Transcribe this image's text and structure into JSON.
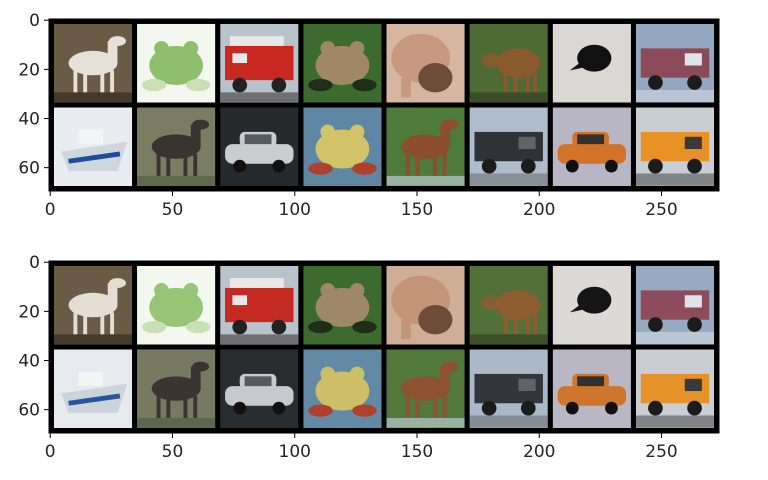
{
  "chart_data": [
    {
      "type": "image-grid",
      "x_ticks": [
        0,
        50,
        100,
        150,
        200,
        250
      ],
      "y_ticks": [
        0,
        20,
        40,
        60
      ],
      "xlim": [
        -0.5,
        273.5
      ],
      "ylim": [
        69.5,
        -0.5
      ],
      "grid": false,
      "grid_rows": 2,
      "grid_cols": 8,
      "tile_size": 32,
      "tile_padding": 2,
      "tiles": [
        {
          "subject": "horse",
          "bg": "#6b5a45",
          "fg": "#e6e0d6",
          "accent": "#2b2419"
        },
        {
          "subject": "frog",
          "bg": "#f4f7f0",
          "fg": "#8fbf6a",
          "accent": "#c9dfb6"
        },
        {
          "subject": "fire-truck",
          "bg": "#b9c3cc",
          "fg": "#c8281f",
          "accent": "#e8e8e8"
        },
        {
          "subject": "frog",
          "bg": "#3d6a2e",
          "fg": "#a08766",
          "accent": "#1f2e17"
        },
        {
          "subject": "dog",
          "bg": "#d6b6a0",
          "fg": "#c89880",
          "accent": "#6d4c3a"
        },
        {
          "subject": "deer",
          "bg": "#4f6b35",
          "fg": "#8a5a2c",
          "accent": "#2f3a1e"
        },
        {
          "subject": "cat",
          "bg": "#dad8d4",
          "fg": "#111111",
          "accent": "#b9b6b0"
        },
        {
          "subject": "truck",
          "bg": "#93a7c0",
          "fg": "#8a4a5a",
          "accent": "#dfe4ea"
        },
        {
          "subject": "ship",
          "bg": "#e9ecf0",
          "fg": "#cfd6dc",
          "accent": "#1e4d9a"
        },
        {
          "subject": "horse",
          "bg": "#7b7d62",
          "fg": "#3a3430",
          "accent": "#4d5a3a"
        },
        {
          "subject": "automobile",
          "bg": "#262a2c",
          "fg": "#c9cdd0",
          "accent": "#555b60"
        },
        {
          "subject": "frog",
          "bg": "#5f86a2",
          "fg": "#d1c36a",
          "accent": "#b0402e"
        },
        {
          "subject": "horse",
          "bg": "#4e7a3a",
          "fg": "#8b4f2e",
          "accent": "#c9d9e9"
        },
        {
          "subject": "truck",
          "bg": "#aebccb",
          "fg": "#2f3338",
          "accent": "#5f6468"
        },
        {
          "subject": "automobile",
          "bg": "#b8b6c4",
          "fg": "#d27428",
          "accent": "#30302f"
        },
        {
          "subject": "truck",
          "bg": "#c9ced4",
          "fg": "#e89125",
          "accent": "#3a3a3a"
        }
      ]
    },
    {
      "type": "image-grid",
      "x_ticks": [
        0,
        50,
        100,
        150,
        200,
        250
      ],
      "y_ticks": [
        0,
        20,
        40,
        60
      ],
      "xlim": [
        -0.5,
        273.5
      ],
      "ylim": [
        69.5,
        -0.5
      ],
      "grid": false,
      "grid_rows": 2,
      "grid_cols": 8,
      "tile_size": 32,
      "tile_padding": 2,
      "tiles": [
        {
          "subject": "horse",
          "bg": "#6b5a45",
          "fg": "#e3ddd2",
          "accent": "#2b2419"
        },
        {
          "subject": "frog",
          "bg": "#f4f7f0",
          "fg": "#98c476",
          "accent": "#c9dfb6"
        },
        {
          "subject": "fire-truck",
          "bg": "#b9c3cc",
          "fg": "#c42a22",
          "accent": "#e8e8e8"
        },
        {
          "subject": "frog",
          "bg": "#3d6a2e",
          "fg": "#9f8868",
          "accent": "#1f2e17"
        },
        {
          "subject": "dog",
          "bg": "#cfae98",
          "fg": "#c49478",
          "accent": "#6d4c3a"
        },
        {
          "subject": "deer",
          "bg": "#54703a",
          "fg": "#8d5d30",
          "accent": "#2f3a1e"
        },
        {
          "subject": "cat",
          "bg": "#dcdad6",
          "fg": "#151515",
          "accent": "#b9b6b0"
        },
        {
          "subject": "truck",
          "bg": "#98aac2",
          "fg": "#8d4c5c",
          "accent": "#dfe4ea"
        },
        {
          "subject": "ship",
          "bg": "#e6e9ee",
          "fg": "#ccd3da",
          "accent": "#2a559c"
        },
        {
          "subject": "horse",
          "bg": "#777a60",
          "fg": "#3b3532",
          "accent": "#4d5a3a"
        },
        {
          "subject": "automobile",
          "bg": "#292d2f",
          "fg": "#c6cace",
          "accent": "#555b60"
        },
        {
          "subject": "frog",
          "bg": "#6389a4",
          "fg": "#cdbf68",
          "accent": "#b0402e"
        },
        {
          "subject": "horse",
          "bg": "#52783c",
          "fg": "#8c5232",
          "accent": "#c9d9e9"
        },
        {
          "subject": "truck",
          "bg": "#aab9c8",
          "fg": "#33373c",
          "accent": "#5f6468"
        },
        {
          "subject": "automobile",
          "bg": "#b9b7c4",
          "fg": "#d0762c",
          "accent": "#30302f"
        },
        {
          "subject": "truck",
          "bg": "#caced4",
          "fg": "#e6922a",
          "accent": "#3a3a3a"
        }
      ]
    }
  ]
}
